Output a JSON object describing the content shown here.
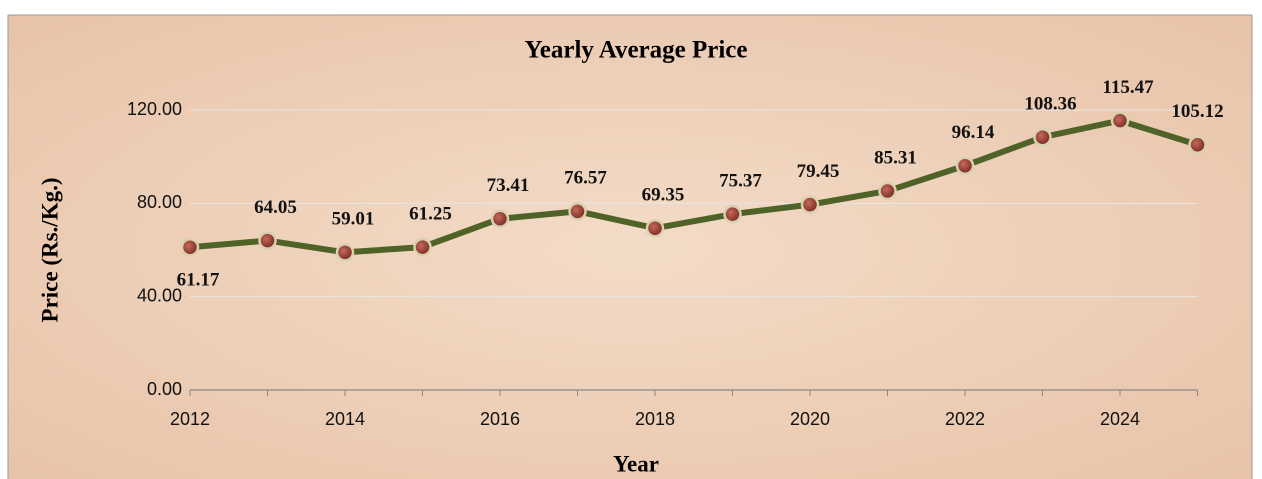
{
  "chart_data": {
    "type": "line",
    "title": "Yearly Average Price",
    "x_label": "Year",
    "y_label": "Price (Rs./Kg.)",
    "x": [
      2012,
      2013,
      2014,
      2015,
      2016,
      2017,
      2018,
      2019,
      2020,
      2021,
      2022,
      2023,
      2024,
      2025
    ],
    "series": [
      {
        "name": "Yearly Average Price",
        "color": "#4f6228",
        "values": [
          61.17,
          64.05,
          59.01,
          61.25,
          73.41,
          76.57,
          69.35,
          75.37,
          79.45,
          85.31,
          96.14,
          108.36,
          115.47,
          105.12
        ]
      }
    ],
    "xlim": [
      2012,
      2025
    ],
    "xticks": [
      2012,
      2014,
      2016,
      2018,
      2020,
      2022,
      2024
    ],
    "ylim": [
      0,
      130
    ],
    "yticks": [
      {
        "value": 0,
        "label": "0.00"
      },
      {
        "value": 40,
        "label": "40.00"
      },
      {
        "value": 80,
        "label": "80.00"
      },
      {
        "value": 120,
        "label": "120.00"
      }
    ],
    "grid": true
  }
}
